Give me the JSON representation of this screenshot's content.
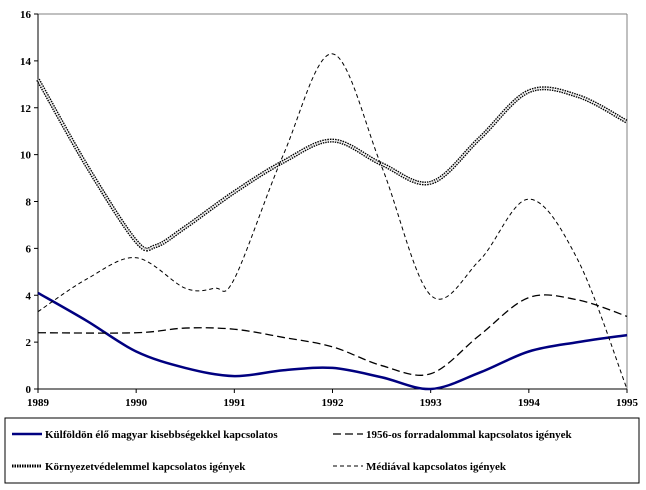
{
  "chart_data": {
    "type": "line",
    "title": "",
    "xlabel": "",
    "ylabel": "",
    "xlim": [
      1989,
      1995
    ],
    "ylim": [
      0,
      16
    ],
    "x_ticks": [
      "1989",
      "1990",
      "1991",
      "1992",
      "1993",
      "1994",
      "1995"
    ],
    "y_ticks": [
      "0",
      "2",
      "4",
      "6",
      "8",
      "10",
      "12",
      "14",
      "16"
    ],
    "grid": false,
    "legend_position": "bottom",
    "series": [
      {
        "name": "Külföldön élő magyar kisebbségekkel kapcsolatos",
        "style": "solid",
        "color": "#000080",
        "x": [
          1989,
          1989.5,
          1990,
          1990.5,
          1991,
          1991.5,
          1992,
          1992.5,
          1993,
          1993.5,
          1994,
          1994.5,
          1995
        ],
        "y": [
          4.1,
          2.9,
          1.6,
          0.9,
          0.55,
          0.8,
          0.9,
          0.5,
          0.0,
          0.7,
          1.6,
          2.0,
          2.3
        ]
      },
      {
        "name": "1956-os forradalommal kapcsolatos igények",
        "style": "long-dash",
        "color": "#000000",
        "x": [
          1989,
          1990,
          1990.5,
          1991,
          1991.5,
          1992,
          1992.5,
          1993,
          1993.5,
          1994,
          1994.5,
          1995
        ],
        "y": [
          2.4,
          2.4,
          2.6,
          2.55,
          2.2,
          1.8,
          1.0,
          0.65,
          2.3,
          3.9,
          3.8,
          3.1
        ]
      },
      {
        "name": "Környezetvédelemmel kapcsolatos igények",
        "style": "beaded",
        "color": "#000000",
        "x": [
          1989,
          1989.5,
          1990,
          1990.2,
          1990.5,
          1991,
          1991.5,
          1992,
          1992.5,
          1993,
          1993.5,
          1994,
          1994.5,
          1995
        ],
        "y": [
          13.2,
          9.5,
          6.3,
          6.1,
          6.9,
          8.4,
          9.7,
          10.6,
          9.6,
          8.8,
          10.7,
          12.7,
          12.5,
          11.4
        ]
      },
      {
        "name": "Médiával kapcsolatos igények",
        "style": "short-dash",
        "color": "#000000",
        "x": [
          1989,
          1989.5,
          1990,
          1990.5,
          1990.8,
          1991,
          1991.5,
          1992,
          1992.5,
          1993,
          1993.5,
          1994,
          1994.5,
          1995
        ],
        "y": [
          3.3,
          4.7,
          5.6,
          4.3,
          4.3,
          4.7,
          10.0,
          14.3,
          9.5,
          4.0,
          5.5,
          8.1,
          5.5,
          0.0
        ]
      }
    ]
  }
}
